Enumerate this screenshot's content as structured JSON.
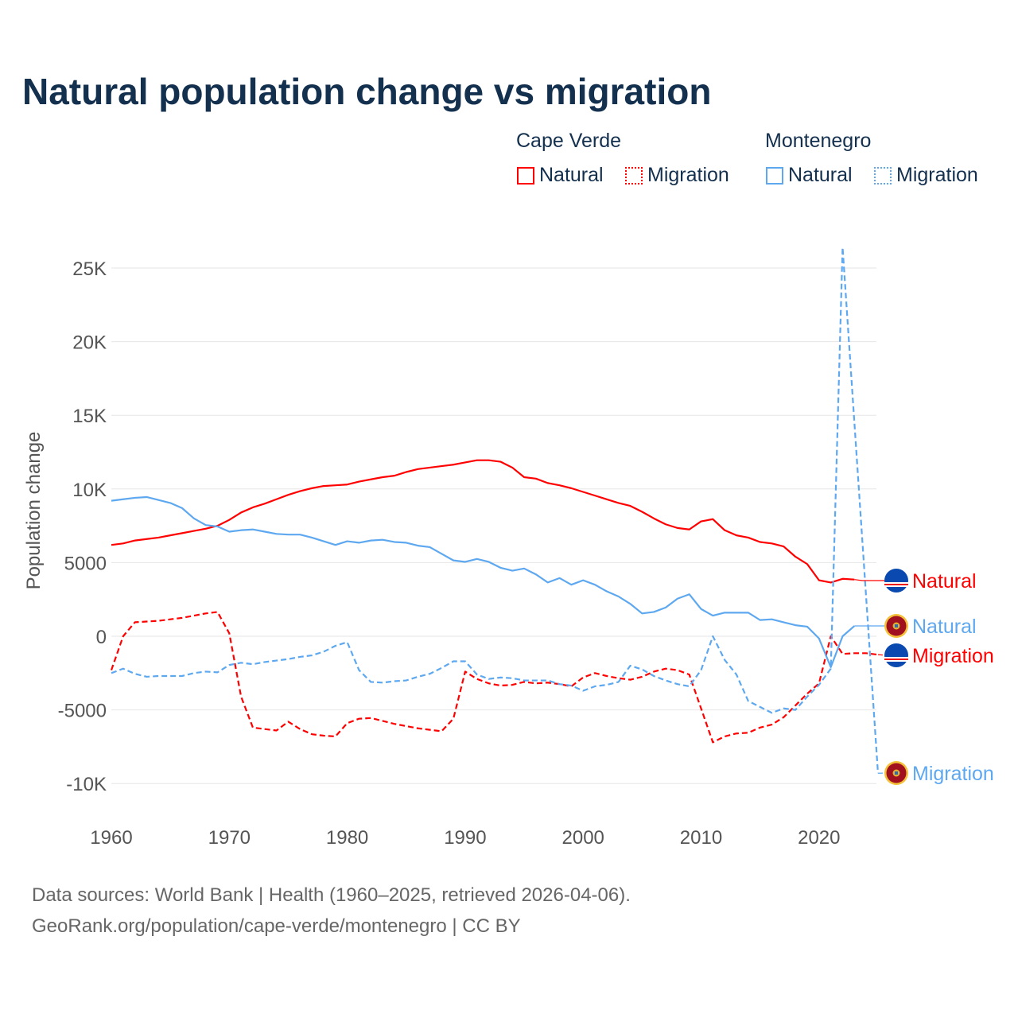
{
  "chart_data": {
    "type": "line",
    "title": "Natural population change vs migration",
    "xlabel": "",
    "ylabel": "Population change",
    "xlim": [
      1960,
      2025
    ],
    "ylim": [
      -10000,
      26500
    ],
    "yticks": [
      {
        "v": 25000,
        "label": "25K"
      },
      {
        "v": 20000,
        "label": "20K"
      },
      {
        "v": 15000,
        "label": "15K"
      },
      {
        "v": 10000,
        "label": "10K"
      },
      {
        "v": 5000,
        "label": "5000"
      },
      {
        "v": 0,
        "label": "0"
      },
      {
        "v": -5000,
        "label": "-5000"
      },
      {
        "v": -10000,
        "label": "-10K"
      }
    ],
    "xticks": [
      1960,
      1970,
      1980,
      1990,
      2000,
      2010,
      2020
    ],
    "grid": true,
    "legend": {
      "placement": "top-right",
      "groups": [
        {
          "name": "Cape Verde",
          "items": [
            "Natural",
            "Migration"
          ]
        },
        {
          "name": "Montenegro",
          "items": [
            "Natural",
            "Migration"
          ]
        }
      ]
    },
    "series": [
      {
        "name": "Cape Verde Natural",
        "country": "Cape Verde",
        "label": "Natural",
        "color": "#ff0000",
        "dash": false,
        "start": 1960,
        "values": [
          6200,
          6300,
          6500,
          6600,
          6700,
          6850,
          7000,
          7150,
          7300,
          7500,
          7900,
          8400,
          8750,
          9000,
          9300,
          9600,
          9850,
          10050,
          10200,
          10250,
          10300,
          10500,
          10650,
          10800,
          10900,
          11150,
          11350,
          11450,
          11550,
          11650,
          11800,
          11950,
          11950,
          11850,
          11450,
          10800,
          10700,
          10400,
          10250,
          10050,
          9800,
          9550,
          9300,
          9050,
          8850,
          8450,
          8000,
          7600,
          7350,
          7250,
          7800,
          7950,
          7200,
          6850,
          6700,
          6400,
          6300,
          6100,
          5400,
          4900,
          3800,
          3650,
          3900,
          3850
        ]
      },
      {
        "name": "Cape Verde Migration",
        "country": "Cape Verde",
        "label": "Migration",
        "color": "#ff0000",
        "dash": true,
        "start": 1960,
        "values": [
          -2300,
          0,
          950,
          1000,
          1050,
          1150,
          1250,
          1400,
          1550,
          1650,
          200,
          -4100,
          -6200,
          -6300,
          -6400,
          -5800,
          -6300,
          -6650,
          -6750,
          -6800,
          -5900,
          -5600,
          -5550,
          -5750,
          -5950,
          -6100,
          -6250,
          -6350,
          -6450,
          -5600,
          -2400,
          -2900,
          -3200,
          -3350,
          -3300,
          -3100,
          -3200,
          -3150,
          -3250,
          -3400,
          -2800,
          -2500,
          -2700,
          -2850,
          -2950,
          -2750,
          -2400,
          -2200,
          -2300,
          -2600,
          -4900,
          -7200,
          -6800,
          -6600,
          -6550,
          -6200,
          -6000,
          -5500,
          -4700,
          -3900,
          -3200,
          0,
          -1200,
          -1150,
          -1150,
          -1250
        ]
      },
      {
        "name": "Montenegro Natural",
        "country": "Montenegro",
        "label": "Natural",
        "color": "#5ea8f0",
        "dash": false,
        "start": 1960,
        "values": [
          9200,
          9300,
          9400,
          9450,
          9250,
          9050,
          8700,
          8000,
          7550,
          7450,
          7100,
          7200,
          7250,
          7100,
          6950,
          6900,
          6900,
          6700,
          6450,
          6200,
          6450,
          6350,
          6500,
          6550,
          6400,
          6350,
          6150,
          6050,
          5600,
          5150,
          5050,
          5250,
          5050,
          4650,
          4450,
          4600,
          4200,
          3650,
          3950,
          3500,
          3800,
          3500,
          3050,
          2700,
          2200,
          1550,
          1650,
          1950,
          2550,
          2850,
          1850,
          1400,
          1600,
          1600,
          1600,
          1100,
          1150,
          950,
          750,
          650,
          -150,
          -2100,
          0,
          700
        ]
      },
      {
        "name": "Montenegro Migration",
        "country": "Montenegro",
        "label": "Migration",
        "color": "#5ea8f0",
        "dash": true,
        "start": 1960,
        "values": [
          -2500,
          -2200,
          -2550,
          -2750,
          -2700,
          -2700,
          -2700,
          -2500,
          -2400,
          -2450,
          -1950,
          -1800,
          -1900,
          -1750,
          -1650,
          -1550,
          -1400,
          -1300,
          -1050,
          -650,
          -400,
          -2300,
          -3100,
          -3150,
          -3050,
          -3000,
          -2750,
          -2550,
          -2150,
          -1700,
          -1700,
          -2600,
          -2900,
          -2800,
          -2850,
          -3000,
          -3000,
          -3000,
          -3250,
          -3350,
          -3700,
          -3400,
          -3300,
          -3100,
          -2000,
          -2250,
          -2700,
          -3000,
          -3250,
          -3400,
          -2300,
          0,
          -1600,
          -2600,
          -4400,
          -4800,
          -5200,
          -4900,
          -5000,
          -4100,
          -3300,
          -2200,
          26400,
          14500,
          2600,
          -9300
        ]
      }
    ]
  },
  "source": {
    "line1": "Data sources: World Bank | Health (1960–2025, retrieved 2026-04-06).",
    "line2": "GeoRank.org/population/cape-verde/montenegro | CC BY"
  }
}
